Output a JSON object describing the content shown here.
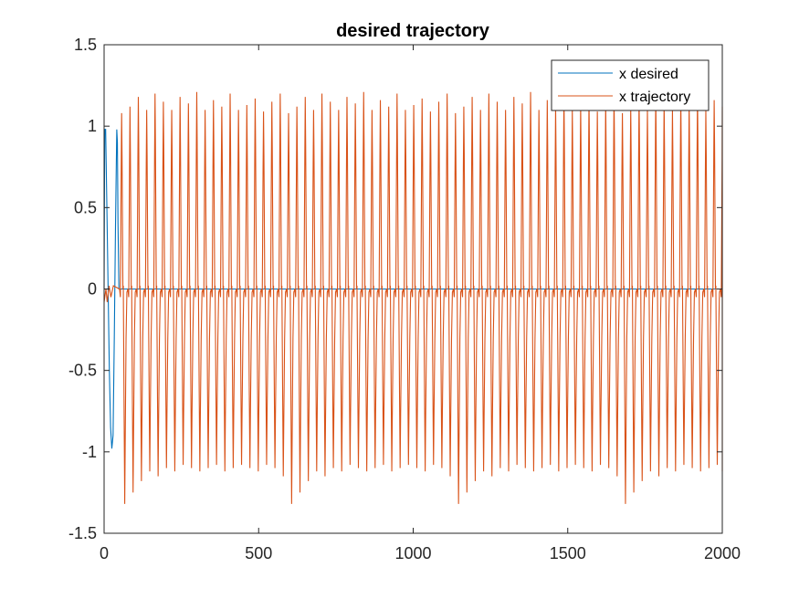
{
  "chart_data": {
    "type": "line",
    "title": "desired trajectory",
    "xlabel": "",
    "ylabel": "",
    "xlim": [
      0,
      2000
    ],
    "ylim": [
      -1.5,
      1.5
    ],
    "xticks": [
      "0",
      "500",
      "1000",
      "1500",
      "2000"
    ],
    "yticks": [
      "1.5",
      "1",
      "0.5",
      "0",
      "-0.5",
      "-1",
      "-1.5"
    ],
    "grid": false,
    "legend_position": "top-right",
    "series": [
      {
        "name": "x desired",
        "color": "#0072BD",
        "x": [
          0,
          2,
          5,
          9,
          13,
          17,
          21,
          25,
          29,
          33,
          37,
          41,
          43,
          45,
          48,
          2000
        ],
        "y": [
          0,
          0.98,
          0.98,
          0.5,
          0,
          -0.5,
          -0.85,
          -0.98,
          -0.9,
          -0.3,
          0.4,
          0.98,
          0.9,
          0.4,
          0,
          0
        ]
      },
      {
        "name": "x trajectory",
        "color": "#D95319",
        "period": 27,
        "x_start": 50,
        "x_end": 2000,
        "peaks": [
          1.08,
          1.12,
          1.18,
          1.1,
          1.2,
          1.15,
          1.1,
          1.18,
          1.14,
          1.21,
          1.1,
          1.16,
          1.12,
          1.2,
          1.1,
          1.13,
          1.17,
          1.09,
          1.15,
          1.2
        ],
        "troughs": [
          -1.32,
          -1.25,
          -1.18,
          -1.12,
          -1.15,
          -1.1,
          -1.12,
          -1.08,
          -1.1,
          -1.12,
          -1.1,
          -1.08,
          -1.12,
          -1.1,
          -1.08,
          -1.1,
          -1.12,
          -1.08,
          -1.1,
          -1.15
        ]
      }
    ]
  }
}
